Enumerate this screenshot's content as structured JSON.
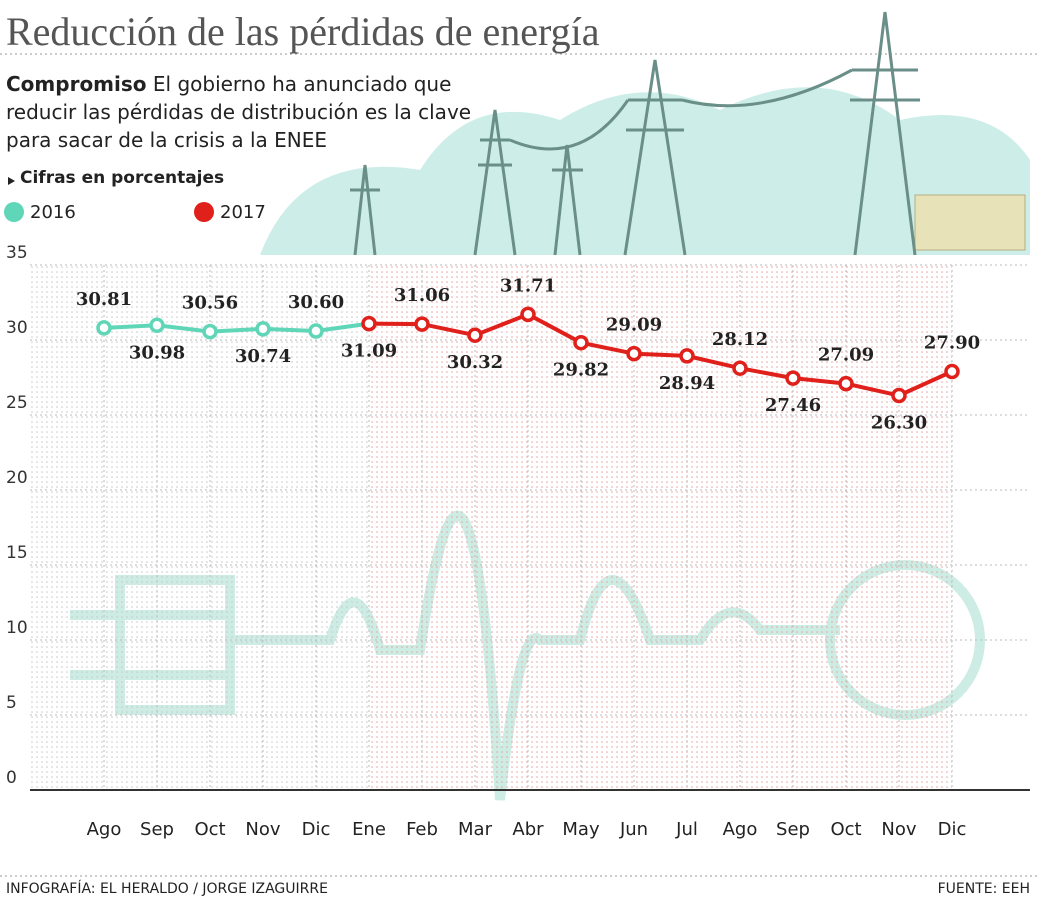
{
  "chart_data": {
    "type": "line",
    "title": "Reducción de las pérdidas de energía",
    "subtitle_lead": "Compromiso",
    "subtitle": "El gobierno ha anunciado que reducir las pérdidas de distribución es la clave para sacar de la crisis a la ENEE",
    "units_note": "Cifras en porcentajes",
    "categories": [
      "Ago",
      "Sep",
      "Oct",
      "Nov",
      "Dic",
      "Ene",
      "Feb",
      "Mar",
      "Abr",
      "May",
      "Jun",
      "Jul",
      "Ago",
      "Sep",
      "Oct",
      "Nov",
      "Dic"
    ],
    "series": [
      {
        "name": "2016",
        "color": "#5fd6b8",
        "values": [
          30.81,
          30.98,
          30.56,
          30.74,
          30.6,
          null,
          null,
          null,
          null,
          null,
          null,
          null,
          null,
          null,
          null,
          null,
          null
        ],
        "value_labels": [
          "30.81",
          "30.98",
          "30.56",
          "30.74",
          "30.60",
          null,
          null,
          null,
          null,
          null,
          null,
          null,
          null,
          null,
          null,
          null,
          null
        ]
      },
      {
        "name": "2017",
        "color": "#e0201b",
        "values": [
          null,
          null,
          null,
          null,
          null,
          31.09,
          31.06,
          30.32,
          31.71,
          29.82,
          29.09,
          28.94,
          28.12,
          27.46,
          27.09,
          26.3,
          27.9
        ],
        "value_labels": [
          null,
          null,
          null,
          null,
          null,
          "31.09",
          "31.06",
          "30.32",
          "31.71",
          "29.82",
          "29.09",
          "28.94",
          "28.12",
          "27.46",
          "27.09",
          "26.30",
          "27.90"
        ]
      }
    ],
    "ylim": [
      0,
      35
    ],
    "yticks": [
      0,
      5,
      10,
      15,
      20,
      25,
      30,
      35
    ],
    "grid": true,
    "credit": "INFOGRAFÍA: EL HERALDO / JORGE IZAGUIRRE",
    "source": "FUENTE: EEH"
  }
}
